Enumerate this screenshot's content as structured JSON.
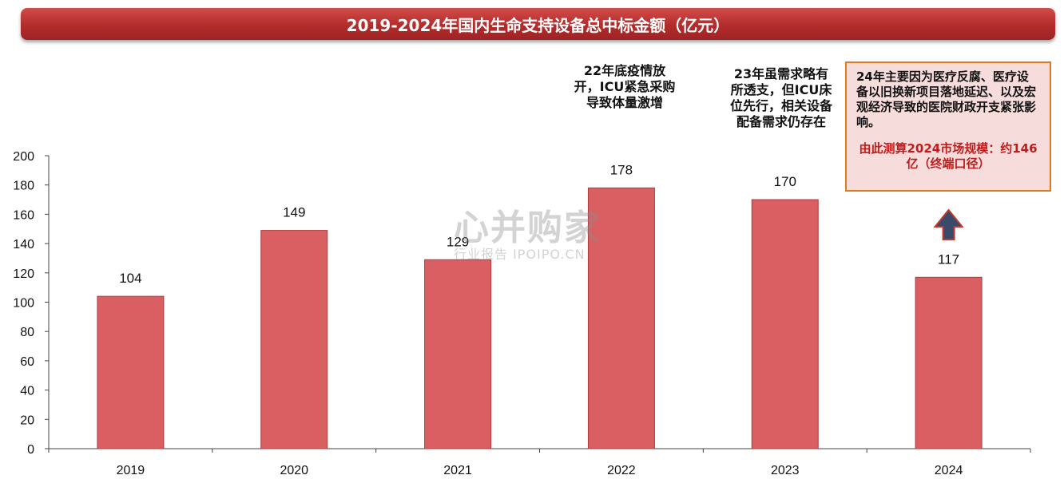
{
  "title": "2019-2024年国内生命支持设备总中标金额（亿元）",
  "annotations": {
    "y2022": "22年底疫情放开，ICU紧急采购导致体量激增",
    "y2023": "23年虽需求略有所透支，但ICU床位先行，相关设备配备需求仍存在"
  },
  "note": {
    "text": "24年主要因为医疗反腐、医疗设备以旧换新项目落地延迟、以及宏观经济导致的医院财政开支紧张影响。",
    "estimate": "由此测算2024市场规模：约146亿（终端口径）"
  },
  "watermark": {
    "main": "心并购家",
    "sub": "行业报告 IPOIPO.CN"
  },
  "arrow_icon": "up-arrow-icon",
  "colors": {
    "bar": "#d95f62",
    "bar_stroke": "#b03a3d",
    "banner": "#b32c2c",
    "note_border": "#e2781f",
    "note_fill": "#f7dcdc",
    "estimate_text": "#c11c1c",
    "arrow_fill": "#3a4a6b",
    "arrow_stroke": "#c0392b"
  },
  "chart_data": {
    "type": "bar",
    "categories": [
      "2019",
      "2020",
      "2021",
      "2022",
      "2023",
      "2024"
    ],
    "values": [
      104,
      149,
      129,
      178,
      170,
      117
    ],
    "ylim": [
      0,
      200
    ],
    "yticks": [
      0,
      20,
      40,
      60,
      80,
      100,
      120,
      140,
      160,
      180,
      200
    ],
    "grid": false,
    "legend": "none"
  }
}
